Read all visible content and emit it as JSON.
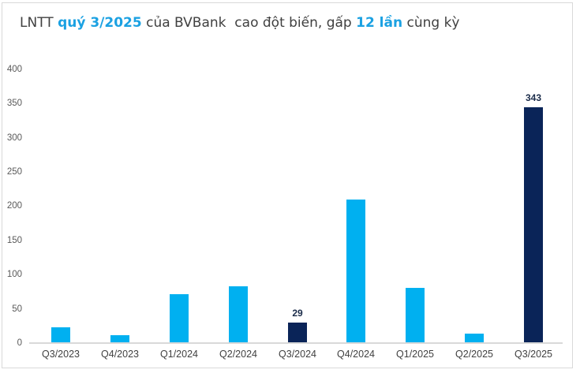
{
  "title": {
    "segments": [
      {
        "text": "LNTT ",
        "accent": false
      },
      {
        "text": "quý 3/2025",
        "accent": true
      },
      {
        "text": " của BVBank  cao đột biến, gấp ",
        "accent": false
      },
      {
        "text": "12 lần",
        "accent": true
      },
      {
        "text": " cùng kỳ",
        "accent": false
      }
    ],
    "full_text": "LNTT quý 3/2025 của BVBank cao đột biến, gấp 12 lần cùng kỳ"
  },
  "colors": {
    "accent_blue": "#1ba1e2",
    "bar_light": "#00b0f0",
    "bar_dark": "#0a2458",
    "title_text": "#404040",
    "y_axis_text": "#595959",
    "x_axis_text": "#404040",
    "data_label_text": "#1a2b49",
    "axis_line": "#d9d9d9",
    "panel_border": "#d9d9d9",
    "background": "#ffffff"
  },
  "chart_data": {
    "type": "bar",
    "title": "LNTT quý 3/2025 của BVBank cao đột biến, gấp 12 lần cùng kỳ",
    "categories": [
      "Q3/2023",
      "Q4/2023",
      "Q1/2024",
      "Q2/2024",
      "Q3/2024",
      "Q4/2024",
      "Q1/2025",
      "Q2/2025",
      "Q3/2025"
    ],
    "values": [
      22,
      10,
      70,
      82,
      29,
      209,
      80,
      13,
      343
    ],
    "bar_palette": [
      "light",
      "light",
      "light",
      "light",
      "dark",
      "light",
      "light",
      "light",
      "dark"
    ],
    "data_labels": [
      null,
      null,
      null,
      null,
      "29",
      null,
      null,
      null,
      "343"
    ],
    "xlabel": "",
    "ylabel": "",
    "ylim": [
      0,
      400
    ],
    "y_ticks": [
      0,
      50,
      100,
      150,
      200,
      250,
      300,
      350,
      400
    ],
    "grid": false,
    "legend": false
  }
}
